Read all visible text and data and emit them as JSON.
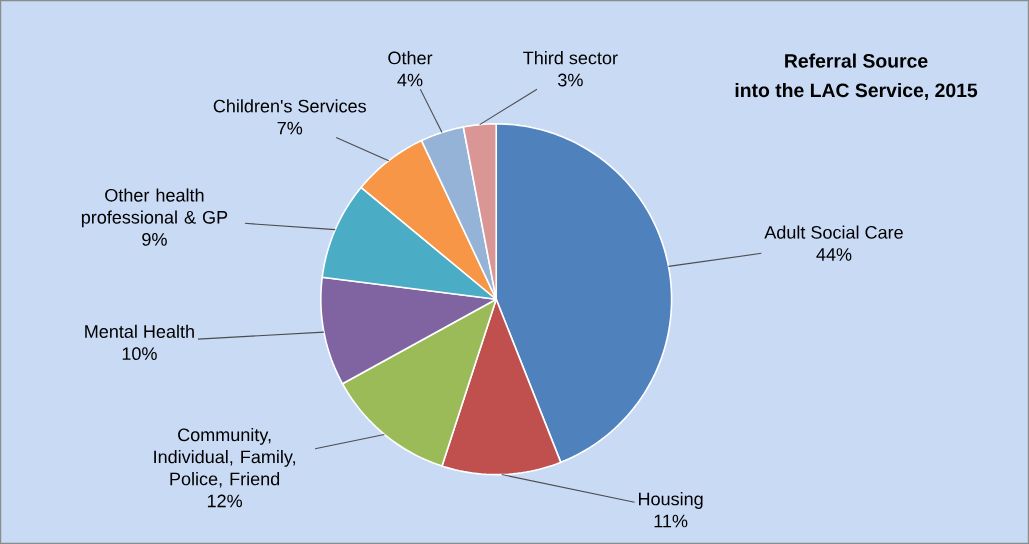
{
  "chart_data": {
    "type": "pie",
    "title": "Referral Source",
    "subtitle": "into the LAC Service, 2015",
    "categories": [
      "Adult Social Care",
      "Housing",
      "Community, Individual, Family, Police, Friend",
      "Mental Health",
      "Other health professional & GP",
      "Children's Services",
      "Other",
      "Third sector"
    ],
    "values": [
      44,
      11,
      12,
      10,
      9,
      7,
      4,
      3
    ],
    "value_labels": [
      "44%",
      "11%",
      "12%",
      "10%",
      "9%",
      "7%",
      "4%",
      "3%"
    ],
    "colors": [
      "#4f81bd",
      "#c0504d",
      "#9bbb59",
      "#8064a2",
      "#4bacc6",
      "#f79646",
      "#95b3d7",
      "#d99694"
    ]
  }
}
